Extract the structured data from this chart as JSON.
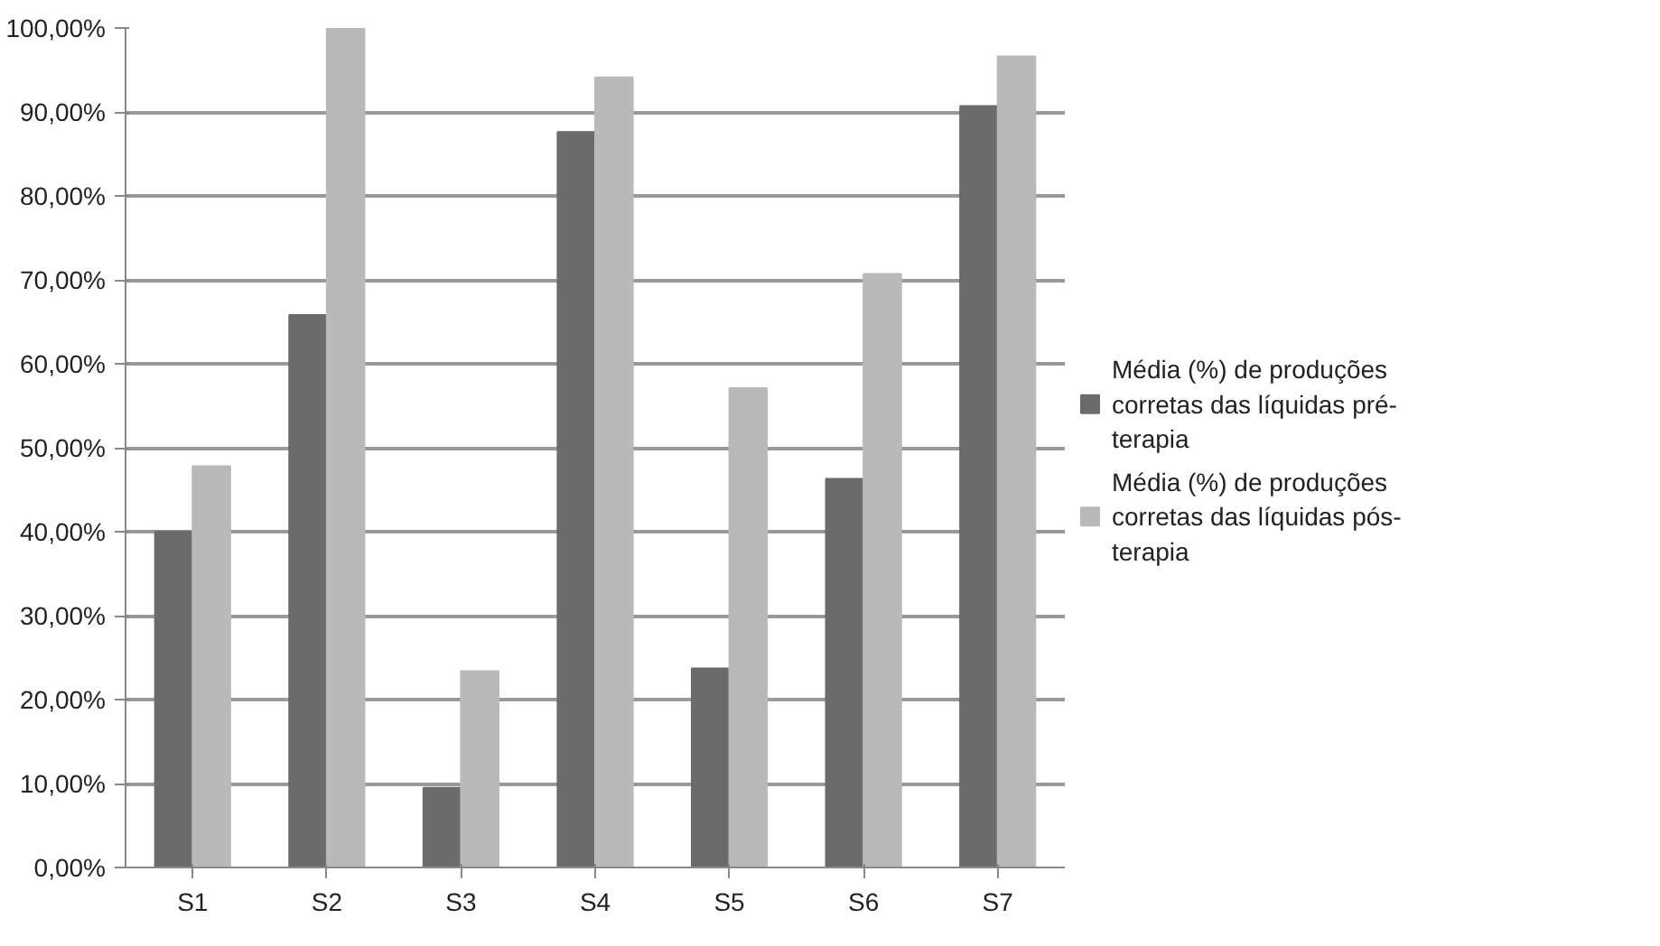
{
  "chart_data": {
    "type": "bar",
    "categories": [
      "S1",
      "S2",
      "S3",
      "S4",
      "S5",
      "S6",
      "S7"
    ],
    "series": [
      {
        "name": "Média (%) de produções corretas das líquidas pré-terapia",
        "color": "#6b6b6b",
        "values": [
          40.0,
          65.8,
          9.5,
          87.6,
          23.7,
          46.3,
          90.7
        ]
      },
      {
        "name": "Média (%) de produções corretas das líquidas pós-terapia",
        "color": "#b9b9b9",
        "values": [
          47.8,
          100.0,
          23.4,
          94.1,
          57.1,
          70.7,
          96.6
        ]
      }
    ],
    "ylim": [
      0,
      100
    ],
    "yticks": [
      {
        "value": 0,
        "label": "0,00%"
      },
      {
        "value": 10,
        "label": "10,00%"
      },
      {
        "value": 20,
        "label": "20,00%"
      },
      {
        "value": 30,
        "label": "30,00%"
      },
      {
        "value": 40,
        "label": "40,00%"
      },
      {
        "value": 50,
        "label": "50,00%"
      },
      {
        "value": 60,
        "label": "60,00%"
      },
      {
        "value": 70,
        "label": "70,00%"
      },
      {
        "value": 80,
        "label": "80,00%"
      },
      {
        "value": 90,
        "label": "90,00%"
      },
      {
        "value": 100,
        "label": "100,00%"
      }
    ],
    "grid": "y",
    "legend": "right"
  }
}
